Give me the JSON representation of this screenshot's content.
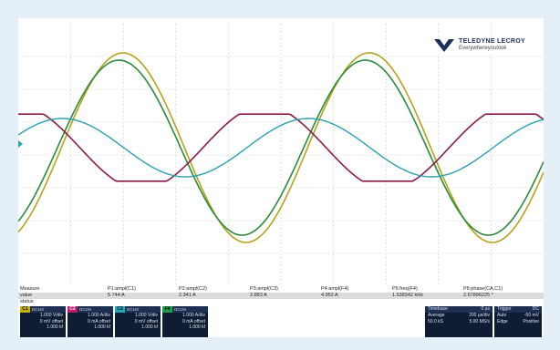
{
  "brand": {
    "name": "TELEDYNE LECROY",
    "tagline": "Everywhereyoulook"
  },
  "measurements": {
    "row_labels": [
      "Measure",
      "value",
      "status"
    ],
    "columns": [
      {
        "param": "P1:ampl(C1)",
        "value": "5.744 A"
      },
      {
        "param": "P2:ampl(C2)",
        "value": "2.341 A"
      },
      {
        "param": "P3:ampl(C3)",
        "value": "2.883 A"
      },
      {
        "param": "P4:ampl(F4)",
        "value": "4.952 A"
      },
      {
        "param": "P5:freq(F4)",
        "value": "1.538342 kHz"
      },
      {
        "param": "P6:phase(CA,C1)",
        "value": "2.67896225 °"
      }
    ]
  },
  "channels": [
    {
      "tag": "C1",
      "mode": "DC1M",
      "scale": "1.000 V/div",
      "offset": "0 mV offset",
      "bw": "1.000 kf",
      "color": "#c8b400"
    },
    {
      "tag": "C2",
      "mode": "DC1M",
      "scale": "1.000 A/div",
      "offset": "0 mA offset",
      "bw": "1.000 kf",
      "color": "#c0186c"
    },
    {
      "tag": "C3",
      "mode": "DC1M",
      "scale": "1.000 V/div",
      "offset": "0 mV offset",
      "bw": "1.000 kf",
      "color": "#20a8b8"
    },
    {
      "tag": "F4",
      "mode": "DC1M",
      "scale": "1.000 A/div",
      "offset": "0 mA offset",
      "bw": "1.000 kf",
      "color": "#1ea04a"
    }
  ],
  "timebase": {
    "label": "Timebase",
    "delay": "0 µs",
    "average_label": "Average",
    "tdiv": "200 µs/div",
    "samples": "50.0 kS",
    "rate": "5.00 MS/s"
  },
  "trigger": {
    "label": "Trigger",
    "coupling": "DC",
    "mode": "Auto",
    "level": "-50 mV",
    "type": "Edge",
    "slope": "Positive"
  },
  "colors": {
    "c1": "#b5a21a",
    "c2": "#8c1a4a",
    "c3": "#2aa0b0",
    "f4": "#2a8a3c",
    "grid": "#cfcfcf"
  }
}
